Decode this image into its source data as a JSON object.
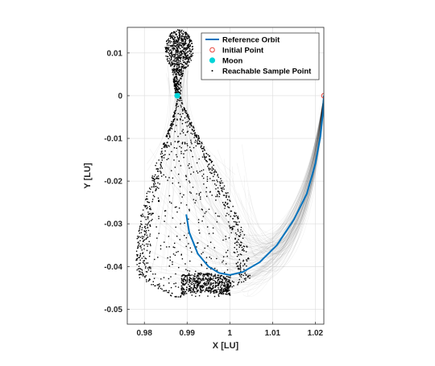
{
  "chart_data": {
    "type": "scatter",
    "title": "",
    "xlabel": "X [LU]",
    "ylabel": "Y [LU]",
    "xlim": [
      0.976,
      1.022
    ],
    "ylim": [
      -0.0535,
      0.016
    ],
    "x_ticks": [
      "0.98",
      "0.99",
      "1",
      "1.01",
      "1.02"
    ],
    "x_tick_values": [
      0.98,
      0.99,
      1.0,
      1.01,
      1.02
    ],
    "y_ticks": [
      "0.01",
      "0",
      "-0.01",
      "-0.02",
      "-0.03",
      "-0.04",
      "-0.05"
    ],
    "y_tick_values": [
      0.01,
      0,
      -0.01,
      -0.02,
      -0.03,
      -0.04,
      -0.05
    ],
    "grid": true,
    "legend_position": "top-right",
    "legend": [
      {
        "label": "Reference Orbit",
        "marker": "line",
        "color": "#0072BD"
      },
      {
        "label": "Initial Point",
        "marker": "open-circle",
        "color": "#e8453c"
      },
      {
        "label": "Moon",
        "marker": "filled-circle",
        "color": "#00d4d8"
      },
      {
        "label": "Reachable Sample Point",
        "marker": "dot",
        "color": "#000000"
      }
    ],
    "series": [
      {
        "name": "Reference Orbit",
        "type": "line",
        "x": [
          0.9898,
          0.9905,
          0.9925,
          0.995,
          0.9975,
          1.0,
          1.003,
          1.007,
          1.011,
          1.015,
          1.018,
          1.02,
          1.0212,
          1.0218,
          1.022
        ],
        "y": [
          -0.0278,
          -0.032,
          -0.037,
          -0.04,
          -0.0415,
          -0.042,
          -0.0413,
          -0.039,
          -0.035,
          -0.029,
          -0.023,
          -0.016,
          -0.0095,
          -0.004,
          0.0
        ]
      },
      {
        "name": "Initial Point",
        "type": "scatter",
        "x": [
          1.022
        ],
        "y": [
          0.0
        ]
      },
      {
        "name": "Moon",
        "type": "scatter",
        "x": [
          0.9877
        ],
        "y": [
          0.0
        ]
      },
      {
        "name": "Reachable Sample Point",
        "type": "scatter",
        "regions": [
          {
            "shape": "teardrop-lobe",
            "x_range": [
              0.9785,
              1.0045
            ],
            "y_range": [
              -0.047,
              0.0
            ]
          },
          {
            "shape": "upper-loop",
            "x_range": [
              0.9845,
              0.9915
            ],
            "y_range": [
              0.0,
              0.015
            ]
          },
          {
            "shape": "dense-band",
            "x_range": [
              0.988,
              1.0
            ],
            "y_range": [
              -0.0465,
              -0.042
            ]
          }
        ]
      }
    ]
  }
}
